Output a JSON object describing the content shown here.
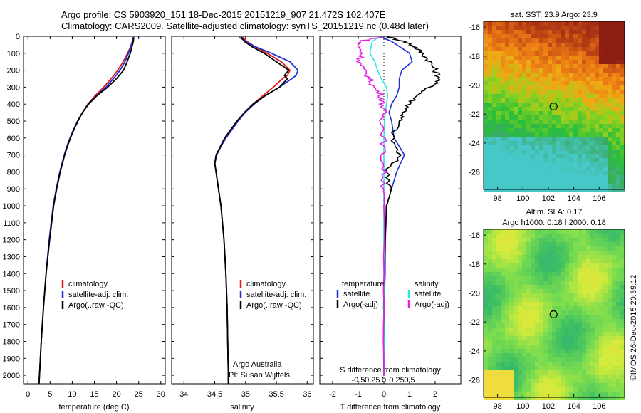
{
  "header": {
    "line1": "Argo profile: CS 5903920_151 18-Dec-2015 20151219_907 21.472S 102.407E",
    "line2": "Climatology: CARS2009. Satellite-adjusted climatology: synTS_20151219.nc (0.48d later)"
  },
  "colors": {
    "climatology": "#e31a1c",
    "satellite": "#1f2fd6",
    "argo": "#000000",
    "sal_sat": "#2ee6e6",
    "sal_argo": "#e61ee6"
  },
  "credit": {
    "line1": "Argo Australia",
    "line2": "PI: Susan Wijffels"
  },
  "stamp": "©IMOS 26-Dec-2015 20:39:12",
  "chart_data": [
    {
      "type": "line",
      "name": "temperature-profile",
      "xlabel": "temperature (deg C)",
      "ylabel": "",
      "xlim": [
        -1,
        31
      ],
      "ylim": [
        2050,
        0
      ],
      "xticks": [
        "0",
        "5",
        "10",
        "15",
        "20",
        "25",
        "30"
      ],
      "yticks": [
        "0",
        "100",
        "200",
        "300",
        "400",
        "500",
        "600",
        "700",
        "800",
        "900",
        "1000",
        "1100",
        "1200",
        "1300",
        "1400",
        "1500",
        "1600",
        "1700",
        "1800",
        "1900",
        "2000"
      ],
      "legend": [
        "climatology",
        "satellite-adj. clim.",
        "Argo(..raw -QC)"
      ],
      "depth": [
        5,
        30,
        60,
        100,
        150,
        200,
        250,
        300,
        350,
        400,
        450,
        500,
        550,
        600,
        650,
        700,
        750,
        800,
        850,
        900,
        1000,
        1200,
        1400,
        1600,
        1800,
        2000,
        2050
      ],
      "series": [
        {
          "name": "climatology",
          "values": [
            23.9,
            23.6,
            23.2,
            22.5,
            21.5,
            20.3,
            18.8,
            17.1,
            15.2,
            13.5,
            12.3,
            11.2,
            10.3,
            9.5,
            8.8,
            8.2,
            7.7,
            7.2,
            6.8,
            6.4,
            5.7,
            4.8,
            4.1,
            3.5,
            3.0,
            2.6,
            2.5
          ]
        },
        {
          "name": "satellite-adj. clim.",
          "values": [
            23.8,
            23.6,
            23.2,
            22.7,
            21.9,
            20.8,
            19.3,
            17.6,
            15.5,
            13.6,
            12.3,
            11.2,
            10.3,
            9.5,
            8.8,
            8.2,
            7.7,
            7.2,
            6.8,
            6.4,
            5.7,
            4.8,
            4.1,
            3.5,
            3.0,
            2.6,
            2.5
          ]
        },
        {
          "name": "Argo(..raw -QC)",
          "values": [
            23.9,
            23.8,
            23.5,
            23.1,
            22.4,
            21.6,
            20.0,
            18.0,
            15.6,
            13.7,
            12.3,
            11.3,
            10.4,
            9.6,
            8.9,
            8.3,
            7.8,
            7.3,
            6.9,
            6.5,
            5.8,
            4.9,
            4.1,
            3.5,
            3.0,
            2.6,
            2.5
          ]
        }
      ]
    },
    {
      "type": "line",
      "name": "salinity-profile",
      "xlabel": "salinity",
      "xlim": [
        33.8,
        36.1
      ],
      "ylim": [
        2050,
        0
      ],
      "xticks": [
        "34",
        "34.5",
        "35",
        "35.5",
        "36"
      ],
      "legend": [
        "climatology",
        "satellite-adj. clim.",
        "Argo(..raw -QC)"
      ],
      "depth": [
        5,
        30,
        60,
        100,
        150,
        200,
        230,
        250,
        300,
        350,
        400,
        450,
        500,
        550,
        600,
        650,
        700,
        750,
        800,
        900,
        1000,
        1200,
        1400,
        1600,
        1800,
        2000,
        2050
      ],
      "series": [
        {
          "name": "climatology",
          "values": [
            34.95,
            35.02,
            35.15,
            35.35,
            35.58,
            35.72,
            35.68,
            35.6,
            35.45,
            35.28,
            35.12,
            34.98,
            34.88,
            34.78,
            34.68,
            34.6,
            34.53,
            34.5,
            34.52,
            34.56,
            34.6,
            34.65,
            34.68,
            34.7,
            34.71,
            34.72,
            34.72
          ]
        },
        {
          "name": "satellite-adj. clim.",
          "values": [
            34.9,
            35.0,
            35.15,
            35.42,
            35.72,
            35.85,
            35.82,
            35.75,
            35.55,
            35.32,
            35.14,
            34.99,
            34.88,
            34.78,
            34.68,
            34.6,
            34.53,
            34.5,
            34.52,
            34.56,
            34.6,
            34.65,
            34.68,
            34.7,
            34.71,
            34.72,
            34.72
          ]
        },
        {
          "name": "Argo(..raw -QC)",
          "values": [
            34.93,
            34.98,
            35.1,
            35.3,
            35.5,
            35.7,
            35.63,
            35.68,
            35.55,
            35.32,
            35.12,
            34.98,
            34.86,
            34.76,
            34.66,
            34.59,
            34.52,
            34.5,
            34.52,
            34.56,
            34.6,
            34.65,
            34.68,
            34.7,
            34.71,
            34.72,
            34.72
          ]
        }
      ]
    },
    {
      "type": "line",
      "name": "difference-profile",
      "xlabel": "T difference from climatology",
      "top_xlabel": "S difference from climatology",
      "xlim": [
        -2.5,
        3.0
      ],
      "ylim": [
        2050,
        0
      ],
      "xticks": [
        "-2",
        "-1",
        "0",
        "1",
        "2"
      ],
      "top_xticks": [
        "-0.5",
        "-0.25",
        "0",
        "0.25",
        "0.5"
      ],
      "legend_t_title": "temperature",
      "legend_s_title": "salinity",
      "legend_t": [
        "satellite",
        "Argo(-adj)"
      ],
      "legend_s": [
        "satellite",
        "Argo(-adj)"
      ],
      "depth": [
        5,
        30,
        60,
        100,
        150,
        200,
        250,
        300,
        350,
        400,
        450,
        500,
        600,
        700,
        800,
        900,
        1000,
        1200,
        1400,
        1600,
        1800,
        2000
      ],
      "series": [
        {
          "name": "temperature satellite",
          "values": [
            -0.1,
            0.3,
            0.6,
            1.0,
            1.1,
            0.7,
            0.6,
            0.6,
            0.5,
            0.3,
            0.2,
            0.3,
            0.4,
            0.8,
            0.5,
            0.3,
            0.1,
            0.05,
            0.05,
            0.0,
            0.0,
            0.0
          ]
        },
        {
          "name": "temperature Argo(-adj)",
          "values": [
            0.2,
            0.8,
            1.2,
            1.5,
            1.8,
            2.0,
            2.2,
            1.8,
            1.3,
            1.0,
            0.8,
            0.6,
            0.3,
            0.6,
            0.1,
            0.3,
            0.1,
            0.05,
            0.02,
            0.0,
            0.0,
            0.0
          ]
        },
        {
          "name": "salinity satellite",
          "values": [
            -0.2,
            -0.45,
            -0.5,
            -0.55,
            -0.35,
            -0.25,
            -0.1,
            0.1,
            0.15,
            0.1,
            0.05,
            0.02,
            0.0,
            0.0,
            0.0,
            0.0,
            0.0,
            0.0,
            0.0,
            0.0,
            0.0,
            0.0
          ]
        },
        {
          "name": "salinity Argo(-adj)",
          "values": [
            -0.1,
            -0.95,
            -1.0,
            -0.85,
            -0.95,
            -0.8,
            -0.55,
            -0.4,
            -0.1,
            -0.05,
            0.0,
            -0.05,
            0.0,
            -0.05,
            0.0,
            0.0,
            0.0,
            0.0,
            0.0,
            0.0,
            0.0,
            0.0
          ]
        }
      ]
    },
    {
      "type": "heatmap",
      "name": "sst-map",
      "title": "sat. SST: 23.9 Argo: 23.9",
      "xticks": [
        "98",
        "100",
        "102",
        "104",
        "106"
      ],
      "yticks": [
        "-16",
        "-18",
        "-20",
        "-22",
        "-24",
        "-26"
      ],
      "xlim": [
        96.9,
        108
      ],
      "ylim": [
        -27.2,
        -15.6
      ],
      "marker": {
        "lon": 102.407,
        "lat": -21.472
      }
    },
    {
      "type": "heatmap",
      "name": "sla-map",
      "title_line1": "Altim. SLA: 0.17",
      "title_line2": "Argo h1000: 0.18 h2000: 0.18",
      "xticks": [
        "98",
        "100",
        "102",
        "104",
        "106"
      ],
      "yticks": [
        "-16",
        "-18",
        "-20",
        "-22",
        "-24",
        "-26"
      ],
      "xlim": [
        96.9,
        108
      ],
      "ylim": [
        -27.2,
        -15.6
      ],
      "marker": {
        "lon": 102.407,
        "lat": -21.472
      }
    }
  ]
}
